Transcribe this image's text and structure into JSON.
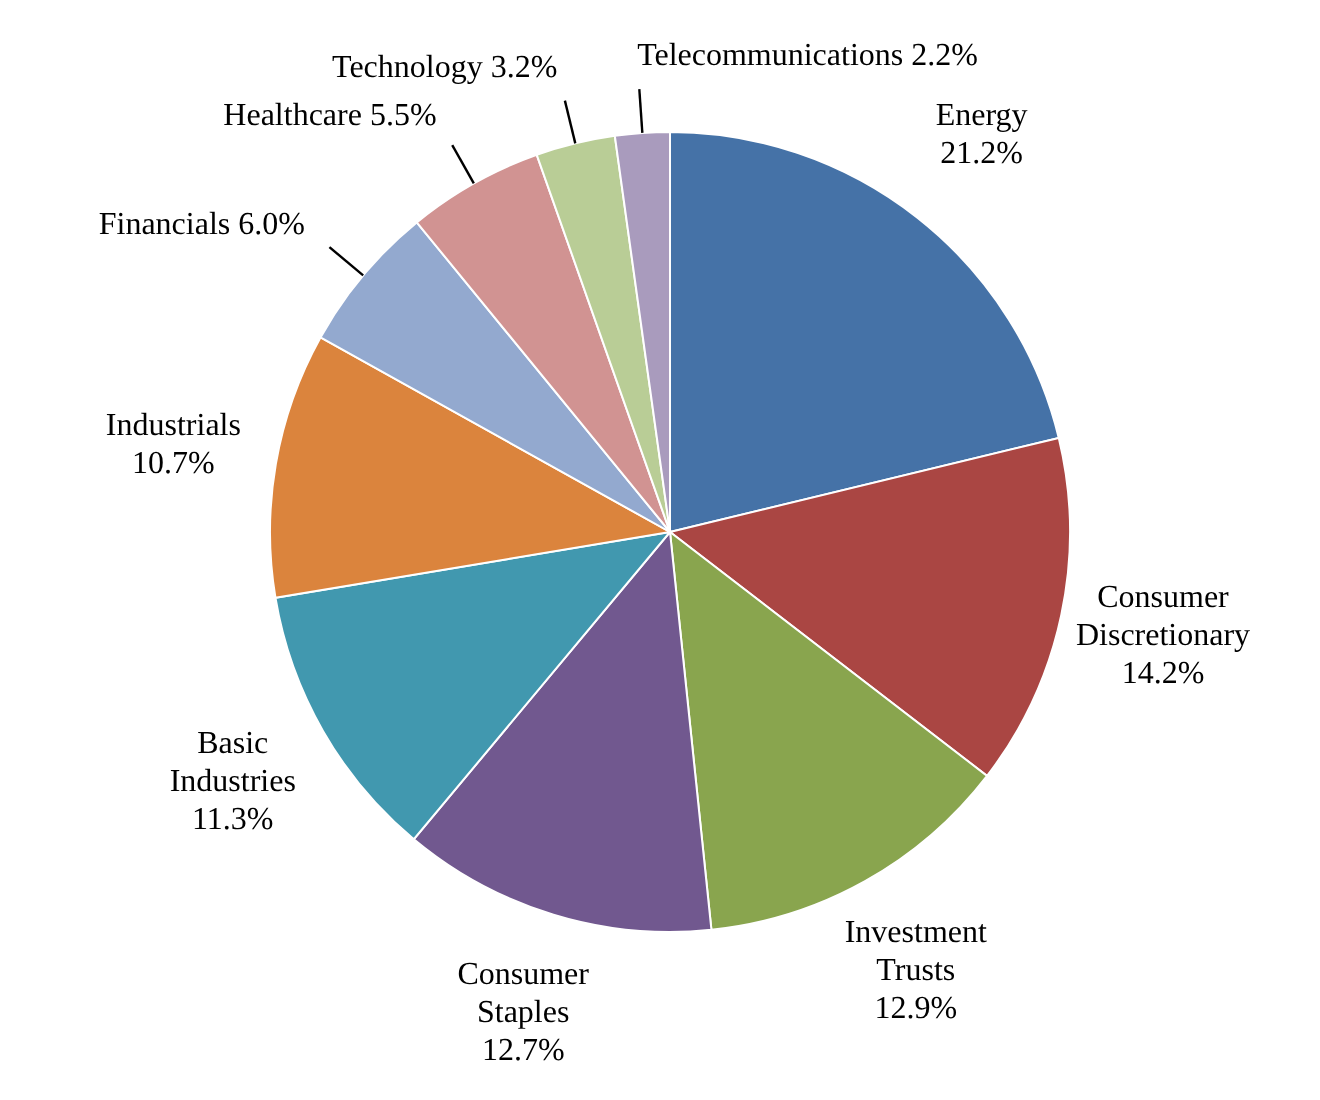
{
  "chart_data": {
    "type": "pie",
    "categories": [
      "Energy",
      "Consumer Discretionary",
      "Investment Trusts",
      "Consumer Staples",
      "Basic Industries",
      "Industrials",
      "Financials",
      "Healthcare",
      "Technology",
      "Telecommunications"
    ],
    "values": [
      21.2,
      14.2,
      12.9,
      12.7,
      11.3,
      10.7,
      6.0,
      5.5,
      3.2,
      2.2
    ],
    "colors": [
      "#4572a7",
      "#aa4643",
      "#89a54e",
      "#71588f",
      "#4198af",
      "#db843d",
      "#93a9cf",
      "#d19392",
      "#b9cd96",
      "#a99bbd"
    ],
    "value_labels": [
      "21.2%",
      "14.2%",
      "12.9%",
      "12.7%",
      "11.3%",
      "10.7%",
      "6.0%",
      "5.5%",
      "3.2%",
      "2.2%"
    ]
  }
}
